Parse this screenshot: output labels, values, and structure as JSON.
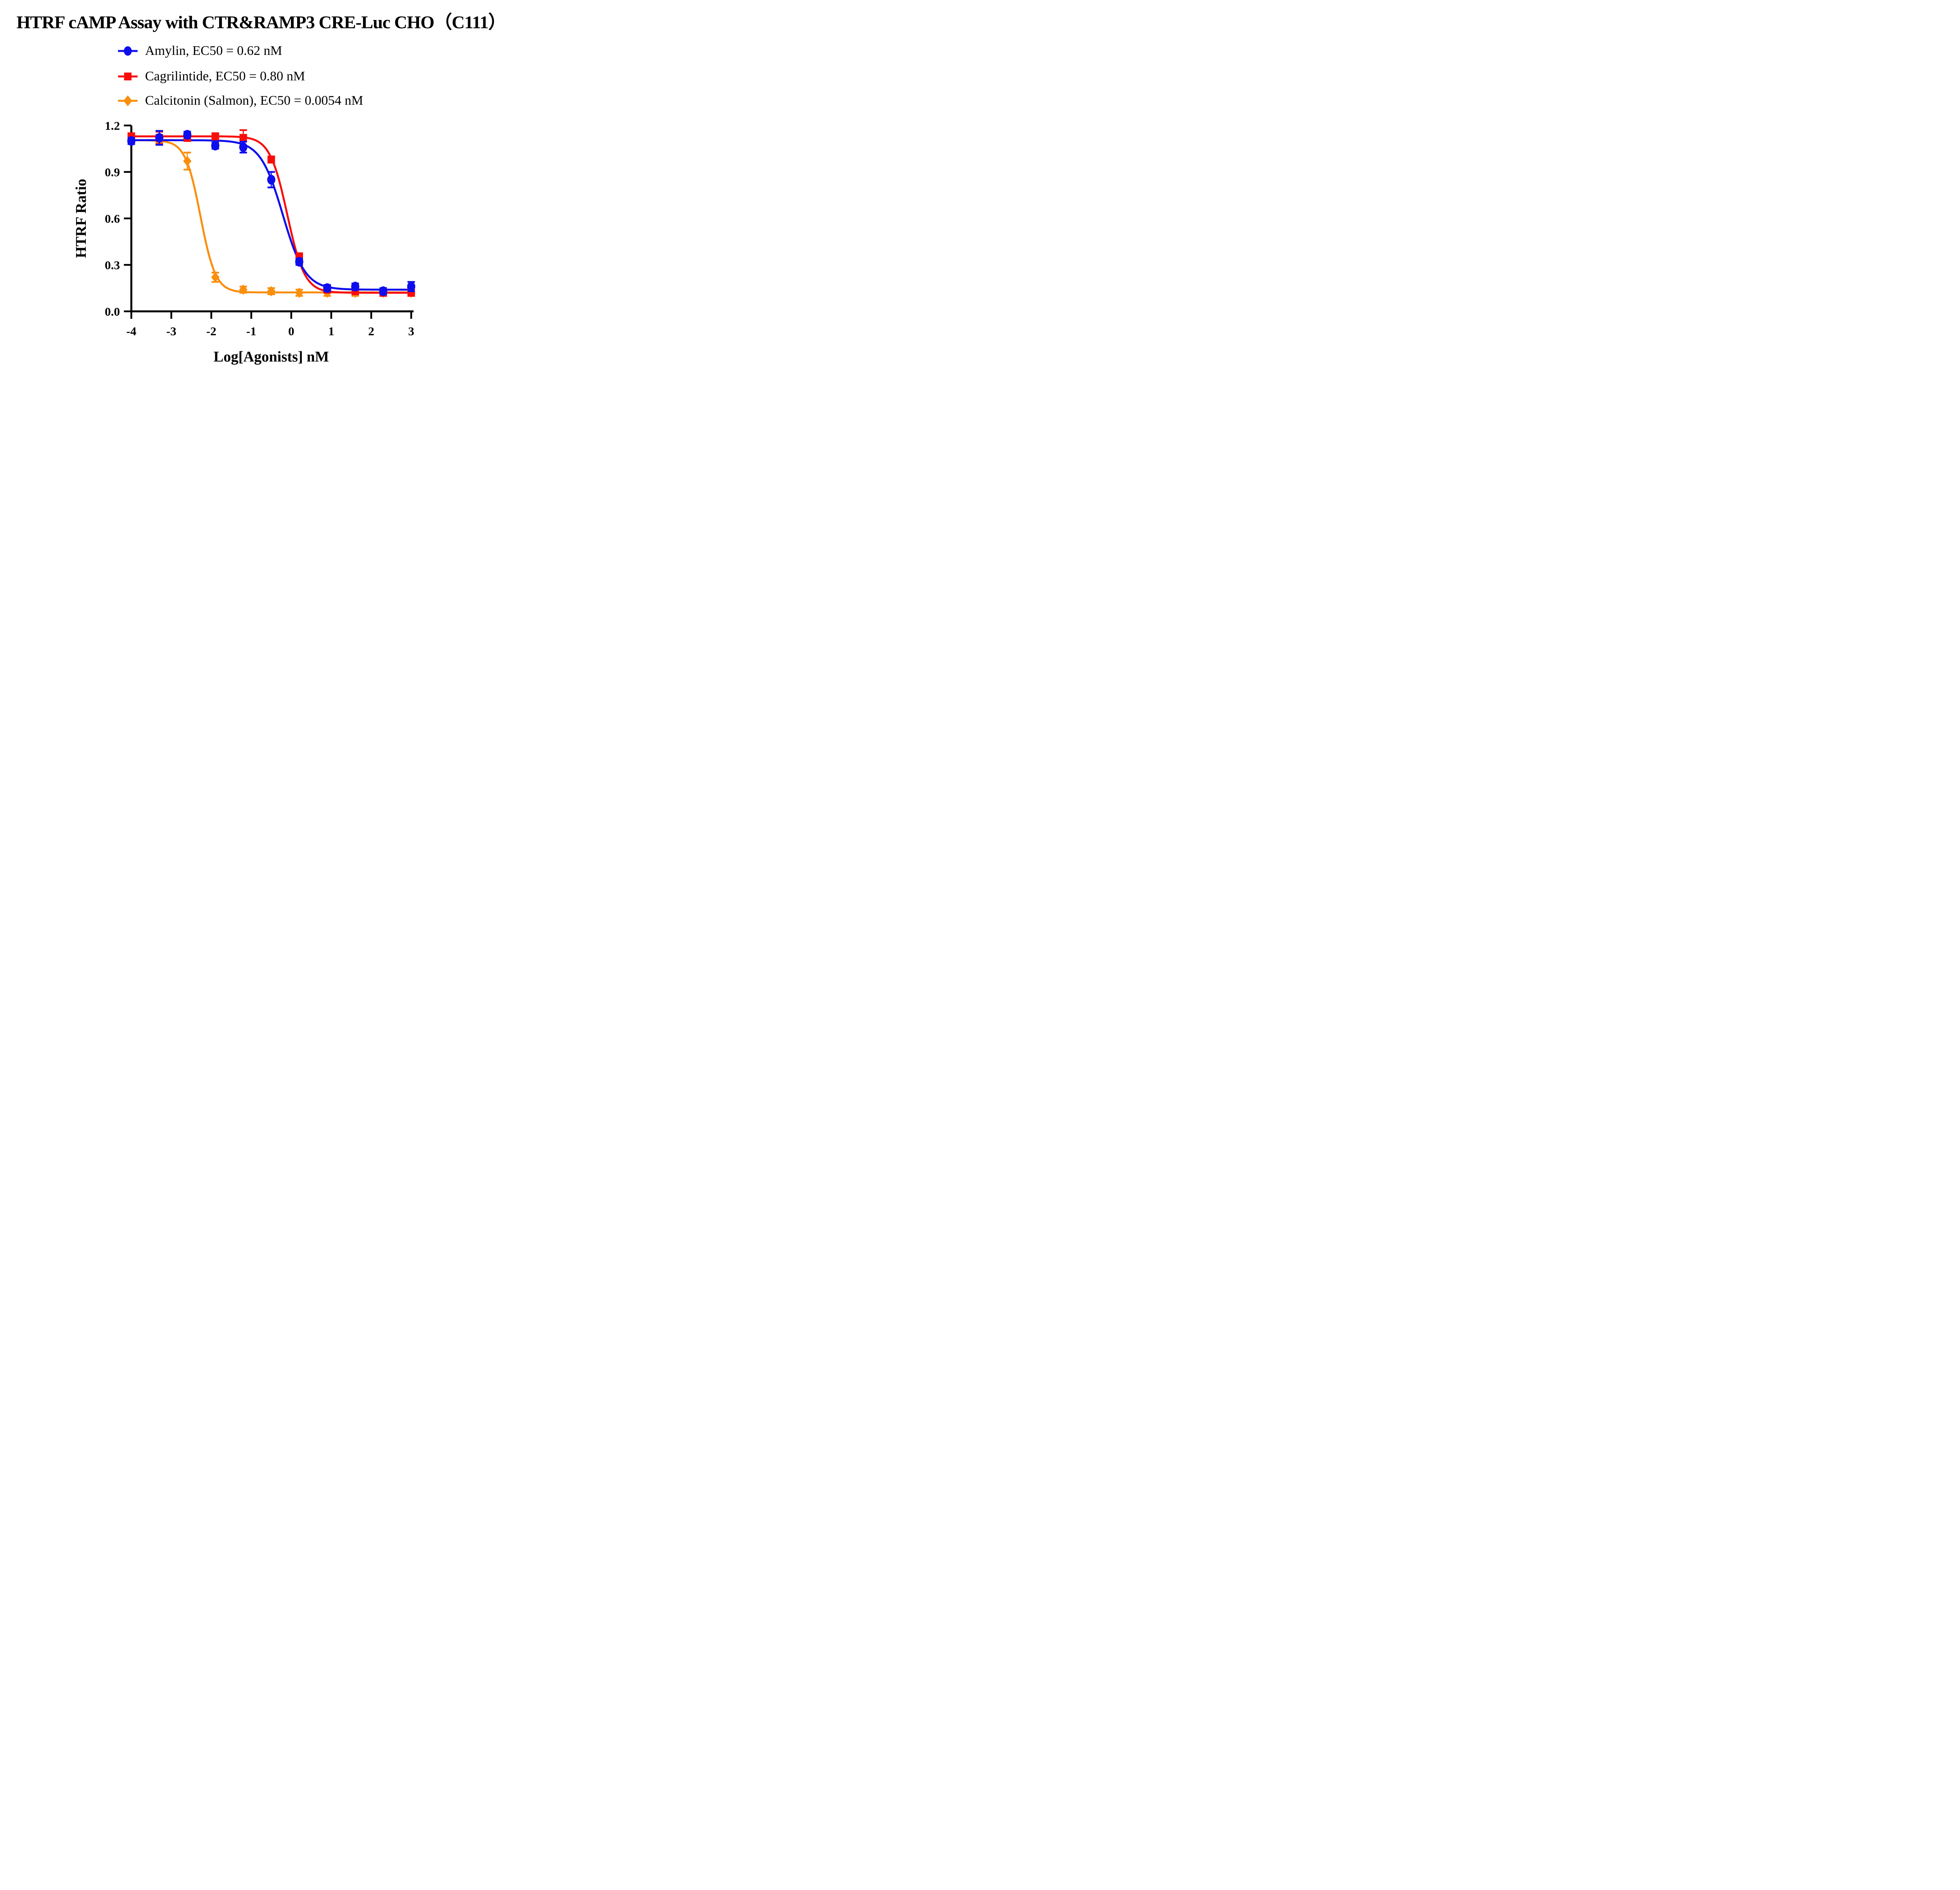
{
  "title": "HTRF cAMP Assay with CTR&RAMP3 CRE-Luc CHO（C111）",
  "legend": {
    "items": [
      {
        "label": "Amylin, EC50 = 0.62 nM",
        "marker": "circle",
        "color": "#0D0DEE"
      },
      {
        "label": "Cagrilintide, EC50 = 0.80 nM",
        "marker": "square",
        "color": "#F90D0B"
      },
      {
        "label": "Calcitonin (Salmon), EC50 = 0.0054 nM",
        "marker": "diamond",
        "color": "#FA8E0D"
      }
    ]
  },
  "chart_data": {
    "type": "line",
    "title": "HTRF cAMP Assay with CTR&RAMP3 CRE-Luc CHO（C111）",
    "xlabel": "Log[Agonists] nM",
    "ylabel": "HTRF Ratio",
    "xlim": [
      -4,
      3
    ],
    "ylim": [
      0.0,
      1.2
    ],
    "xticks": [
      "-4",
      "-3",
      "-2",
      "-1",
      "0",
      "1",
      "2",
      "3"
    ],
    "yticks": [
      "0.0",
      "0.3",
      "0.6",
      "0.9",
      "1.2"
    ],
    "grid": false,
    "legend_position": "top-left",
    "x": [
      -4.0,
      -3.3,
      -2.6,
      -1.9,
      -1.2,
      -0.5,
      0.2,
      0.9,
      1.6,
      2.3,
      3.0
    ],
    "series": [
      {
        "name": "Amylin",
        "ec50_nM": "0.62",
        "marker": "circle",
        "color": "#0D0DEE",
        "values": [
          1.1,
          1.12,
          1.14,
          1.07,
          1.06,
          0.85,
          0.32,
          0.15,
          0.16,
          0.13,
          0.16
        ],
        "errors": [
          0.02,
          0.045,
          0.02,
          0.02,
          0.035,
          0.05,
          0.02,
          0.02,
          0.02,
          0.02,
          0.03
        ],
        "fit": {
          "top": 1.105,
          "bottom": 0.14,
          "logEC50": -0.21,
          "hill": 1.55
        }
      },
      {
        "name": "Cagrilintide",
        "ec50_nM": "0.80",
        "marker": "square",
        "color": "#F90D0B",
        "values": [
          1.13,
          1.12,
          1.12,
          1.13,
          1.12,
          0.98,
          0.35,
          0.14,
          0.13,
          0.12,
          0.12
        ],
        "errors": [
          0.02,
          0.04,
          0.02,
          0.02,
          0.05,
          0.02,
          0.025,
          0.02,
          0.02,
          0.02,
          0.02
        ],
        "fit": {
          "top": 1.13,
          "bottom": 0.12,
          "logEC50": -0.1,
          "hill": 2.0
        }
      },
      {
        "name": "Calcitonin (Salmon)",
        "ec50_nM": "0.0054",
        "marker": "diamond",
        "color": "#FA8E0D",
        "values": [
          1.1,
          1.11,
          0.97,
          0.22,
          0.14,
          0.13,
          0.12,
          0.12,
          0.12,
          0.12,
          0.12
        ],
        "errors": [
          0.02,
          0.02,
          0.055,
          0.03,
          0.02,
          0.02,
          0.02,
          0.02,
          0.02,
          0.02,
          0.02
        ],
        "fit": {
          "top": 1.105,
          "bottom": 0.122,
          "logEC50": -2.27,
          "hill": 2.3
        }
      }
    ]
  }
}
